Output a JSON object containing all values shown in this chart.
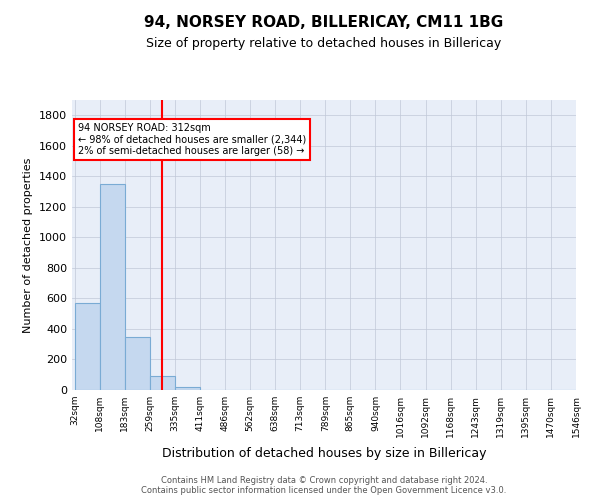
{
  "title": "94, NORSEY ROAD, BILLERICAY, CM11 1BG",
  "subtitle": "Size of property relative to detached houses in Billericay",
  "xlabel": "Distribution of detached houses by size in Billericay",
  "ylabel": "Number of detached properties",
  "property_label": "94 NORSEY ROAD: 312sqm",
  "annotation_line1": "← 98% of detached houses are smaller (2,344)",
  "annotation_line2": "2% of semi-detached houses are larger (58) →",
  "footer_line1": "Contains HM Land Registry data © Crown copyright and database right 2024.",
  "footer_line2": "Contains public sector information licensed under the Open Government Licence v3.0.",
  "bin_labels": [
    "32sqm",
    "108sqm",
    "183sqm",
    "259sqm",
    "335sqm",
    "411sqm",
    "486sqm",
    "562sqm",
    "638sqm",
    "713sqm",
    "789sqm",
    "865sqm",
    "940sqm",
    "1016sqm",
    "1092sqm",
    "1168sqm",
    "1243sqm",
    "1319sqm",
    "1395sqm",
    "1470sqm",
    "1546sqm"
  ],
  "bar_values": [
    570,
    1350,
    350,
    90,
    20,
    0,
    0,
    0,
    0,
    0,
    0,
    0,
    0,
    0,
    0,
    0,
    0,
    0,
    0,
    0
  ],
  "bar_color": "#c5d8ef",
  "bar_edge_color": "#7aabd4",
  "vline_x_index": 3.5,
  "vline_color": "red",
  "ylim": [
    0,
    1900
  ],
  "yticks": [
    0,
    200,
    400,
    600,
    800,
    1000,
    1200,
    1400,
    1600,
    1800
  ],
  "background_color": "#e8eef8",
  "grid_color": "#c0c8d8"
}
